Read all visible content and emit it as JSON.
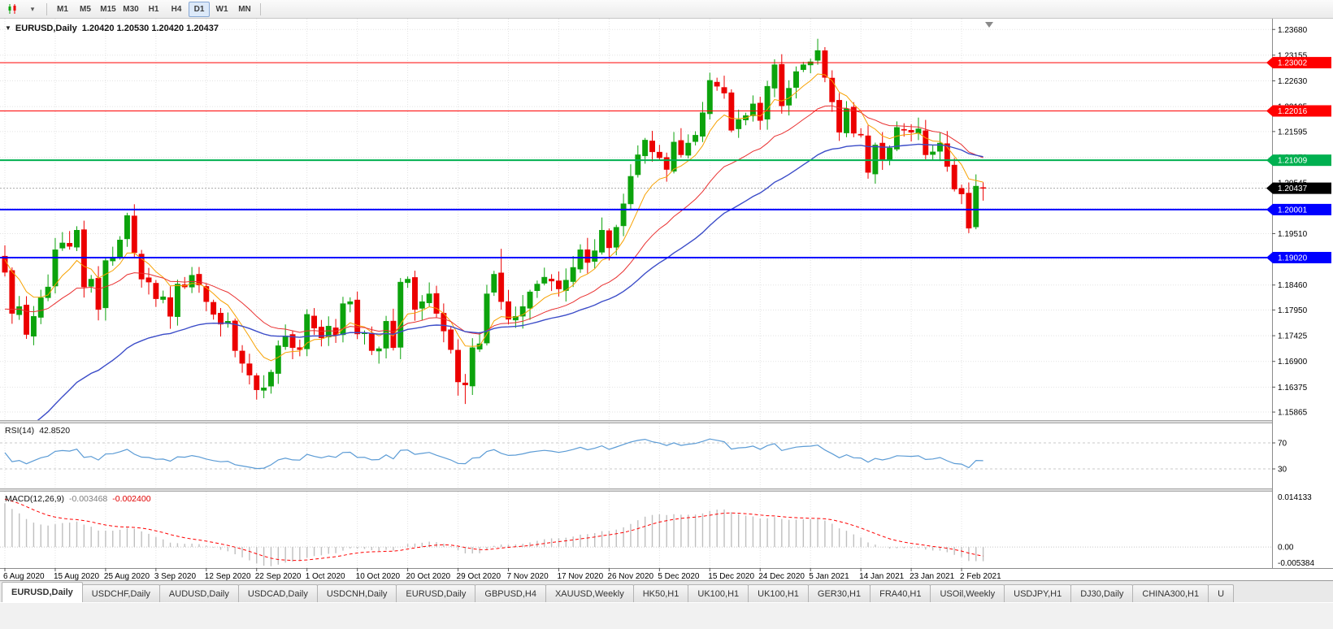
{
  "toolbar": {
    "chart_type_icon": "candlestick-chart",
    "dropdown_icon": "▾",
    "timeframes": [
      "M1",
      "M5",
      "M15",
      "M30",
      "H1",
      "H4",
      "D1",
      "W1",
      "MN"
    ],
    "active_timeframe": "D1"
  },
  "main_chart": {
    "collapse_icon": "▼",
    "title": "EURUSD,Daily",
    "ohlc_text": "1.20420 1.20530 1.20420 1.20437"
  },
  "rsi_panel": {
    "label": "RSI(14)",
    "value": "42.8520",
    "level_labels": [
      "70",
      "30"
    ]
  },
  "macd_panel": {
    "label": "MACD(12,26,9)",
    "value_main": "-0.003468",
    "value_signal": "-0.002400",
    "axis_max": "0.014133",
    "axis_zero": "0.00",
    "axis_min": "-0.005384"
  },
  "price_axis": {
    "ticks": [
      "1.23680",
      "1.23155",
      "1.22630",
      "1.22105",
      "1.21595",
      "1.21070",
      "1.20545",
      "1.20020",
      "1.19510",
      "1.18985",
      "1.18460",
      "1.17950",
      "1.17425",
      "1.16900",
      "1.16375",
      "1.15865"
    ],
    "badges": [
      {
        "text": "1.23002",
        "value": 1.23002,
        "color": "#ff0000"
      },
      {
        "text": "1.22016",
        "value": 1.22016,
        "color": "#ff0000"
      },
      {
        "text": "1.21009",
        "value": 1.21009,
        "color": "#00b050"
      },
      {
        "text": "1.20437",
        "value": 1.20437,
        "color": "#000000"
      },
      {
        "text": "1.20001",
        "value": 1.20001,
        "color": "#0000ff"
      },
      {
        "text": "1.19020",
        "value": 1.1902,
        "color": "#0000ff"
      }
    ]
  },
  "chart_data": {
    "type": "candlestick",
    "symbol": "EURUSD",
    "timeframe": "Daily",
    "current_price": 1.20437,
    "y_range": [
      1.157,
      1.239
    ],
    "x_labels": [
      "6 Aug 2020",
      "15 Aug 2020",
      "25 Aug 2020",
      "3 Sep 2020",
      "12 Sep 2020",
      "22 Sep 2020",
      "1 Oct 2020",
      "10 Oct 2020",
      "20 Oct 2020",
      "29 Oct 2020",
      "7 Nov 2020",
      "17 Nov 2020",
      "26 Nov 2020",
      "5 Dec 2020",
      "15 Dec 2020",
      "24 Dec 2020",
      "5 Jan 2021",
      "14 Jan 2021",
      "23 Jan 2021",
      "2 Feb 2021"
    ],
    "label_every": 7,
    "open_first": 1.1905,
    "closes": [
      1.1872,
      1.1788,
      1.1802,
      1.1745,
      1.1782,
      1.182,
      1.1842,
      1.1918,
      1.1932,
      1.1925,
      1.1958,
      1.1842,
      1.1858,
      1.1796,
      1.1896,
      1.1902,
      1.1938,
      1.1988,
      1.1912,
      1.1858,
      1.1852,
      1.1818,
      1.1822,
      1.1782,
      1.1848,
      1.1842,
      1.1866,
      1.1846,
      1.1812,
      1.1786,
      1.1766,
      1.1772,
      1.1712,
      1.1686,
      1.1662,
      1.1632,
      1.1636,
      1.1668,
      1.1722,
      1.1742,
      1.1718,
      1.1714,
      1.1786,
      1.1758,
      1.1738,
      1.1762,
      1.1744,
      1.1808,
      1.1812,
      1.1746,
      1.1748,
      1.1712,
      1.1716,
      1.1772,
      1.1718,
      1.1852,
      1.1858,
      1.1796,
      1.1812,
      1.1828,
      1.1788,
      1.1752,
      1.1714,
      1.1648,
      1.1642,
      1.1718,
      1.1726,
      1.1828,
      1.1868,
      1.1812,
      1.1776,
      1.1782,
      1.1802,
      1.1832,
      1.1848,
      1.1862,
      1.1854,
      1.1838,
      1.1856,
      1.1882,
      1.1918,
      1.1892,
      1.1916,
      1.1958,
      1.1922,
      1.1964,
      1.2012,
      1.2068,
      1.2112,
      1.2142,
      1.2118,
      1.2106,
      1.2082,
      1.2138,
      1.2112,
      1.2136,
      1.2152,
      1.2198,
      1.2264,
      1.2252,
      1.2238,
      1.2162,
      1.2184,
      1.2192,
      1.2216,
      1.2182,
      1.2252,
      1.2296,
      1.2212,
      1.2248,
      1.2282,
      1.2296,
      1.2302,
      1.2325,
      1.227,
      1.222,
      1.2158,
      1.2206,
      1.2156,
      1.2152,
      1.2076,
      1.2132,
      1.2102,
      1.2126,
      1.2168,
      1.2162,
      1.2158,
      1.2165,
      1.2112,
      1.2118,
      1.2136,
      1.2088,
      1.2042,
      1.2032,
      1.1962,
      1.2048,
      1.2044
    ],
    "wick_overrides": {
      "10": {
        "h": 1.1966
      },
      "18": {
        "h": 1.2011
      },
      "35": {
        "l": 1.1612
      },
      "63": {
        "l": 1.162
      },
      "64": {
        "l": 1.1603
      },
      "69": {
        "h": 1.192
      },
      "113": {
        "h": 1.2349
      },
      "134": {
        "l": 1.1952
      }
    },
    "up_color": "#0ca30c",
    "down_color": "#ec0000",
    "hlines": [
      {
        "value": 1.23002,
        "color": "#ff0000",
        "width": 1
      },
      {
        "value": 1.22016,
        "color": "#ff0000",
        "width": 1
      },
      {
        "value": 1.21009,
        "color": "#00b050",
        "width": 2
      },
      {
        "value": 1.20001,
        "color": "#0000ff",
        "width": 2
      },
      {
        "value": 1.1902,
        "color": "#0000ff",
        "width": 2
      }
    ],
    "moving_averages": [
      {
        "name": "ma-fast",
        "period": 8,
        "seed": 1.1905,
        "color": "#f7a100",
        "width": 1
      },
      {
        "name": "ma-mid",
        "period": 22,
        "seed": 1.179,
        "color": "#e93030",
        "width": 1
      },
      {
        "name": "ma-slow",
        "period": 42,
        "seed": 1.15,
        "color": "#3b4cc8",
        "width": 1.4
      }
    ],
    "rsi": {
      "period": 14,
      "levels": [
        70,
        30
      ],
      "color": "#5b9bd5",
      "last_value": 42.852
    },
    "macd": {
      "fast": 12,
      "slow": 26,
      "signal_period": 9,
      "seed_fast": 1.1865,
      "seed_slow": 1.1745,
      "range_min": -0.005384,
      "range_max": 0.014133,
      "hist_color": "#bfbfbf",
      "signal_color": "#ff0000",
      "last_main": -0.003468,
      "last_signal": -0.0024
    }
  },
  "tabs": [
    {
      "label": "EURUSD,Daily",
      "active": true
    },
    {
      "label": "USDCHF,Daily"
    },
    {
      "label": "AUDUSD,Daily"
    },
    {
      "label": "USDCAD,Daily"
    },
    {
      "label": "USDCNH,Daily"
    },
    {
      "label": "EURUSD,Daily"
    },
    {
      "label": "GBPUSD,H4"
    },
    {
      "label": "XAUUSD,Weekly"
    },
    {
      "label": "HK50,H1"
    },
    {
      "label": "UK100,H1"
    },
    {
      "label": "UK100,H1"
    },
    {
      "label": "GER30,H1"
    },
    {
      "label": "FRA40,H1"
    },
    {
      "label": "USOil,Weekly"
    },
    {
      "label": "USDJPY,H1"
    },
    {
      "label": "DJ30,Daily"
    },
    {
      "label": "CHINA300,H1"
    },
    {
      "label": "U"
    }
  ],
  "colors": {
    "grid": "#e3e3e3",
    "axis_border": "#8c8c8c",
    "bid_line": "#aaaaaa",
    "divider": "#dddddd",
    "shift_marker": "#8a8a8a"
  }
}
